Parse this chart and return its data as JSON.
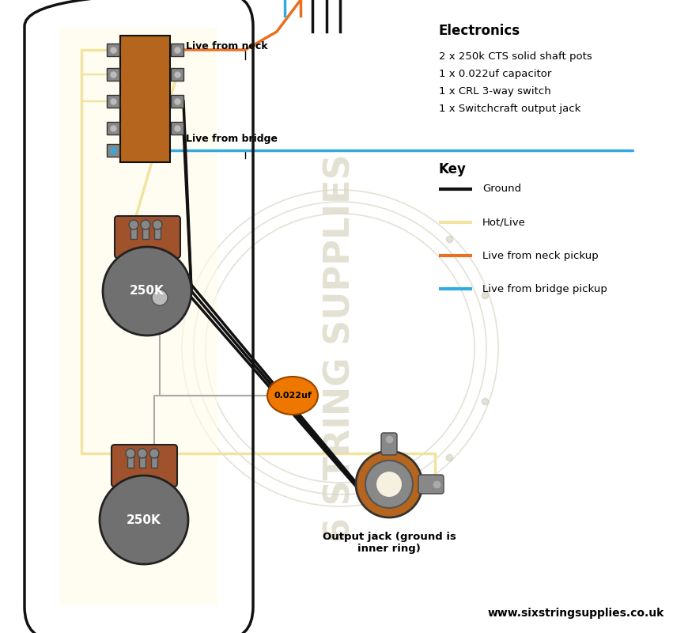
{
  "bg_color": "#ffffff",
  "pill_bg": "#ffffff",
  "yellow_bg": "#fffde8",
  "switch_color": "#b5651d",
  "terminal_face": "#888888",
  "terminal_edge": "#333333",
  "solder_color": "#bbbbbb",
  "pot_body_color": "#707070",
  "pot_base_color": "#a0522d",
  "pot_lug_face": "#888888",
  "shaft_color": "#999999",
  "cap_fill": "#ee7700",
  "cap_edge": "#994400",
  "jack_ring_color": "#b5651d",
  "jack_gray": "#888888",
  "ground_color": "#111111",
  "hot_color": "#f0e4a0",
  "neck_color": "#e87020",
  "bridge_color": "#33aadd",
  "watermark_color": "#d8d5c0",
  "wm_circle_color": "#c8c5b0",
  "electronics_title": "Electronics",
  "electronics_items": [
    "2 x 250k CTS solid shaft pots",
    "1 x 0.022uf capacitor",
    "1 x CRL 3-way switch",
    "1 x Switchcraft output jack"
  ],
  "key_title": "Key",
  "key_items": [
    {
      "label": "Ground",
      "color": "#111111"
    },
    {
      "label": "Hot/Live",
      "color": "#f0e4a0"
    },
    {
      "label": "Live from neck pickup",
      "color": "#e87020"
    },
    {
      "label": "Live from bridge pickup",
      "color": "#33aadd"
    }
  ],
  "footer": "www.sixstringsupplies.co.uk",
  "label_neck": "Live from neck",
  "label_bridge": "Live from bridge",
  "label_cap": "0.022uf",
  "label_pot": "250K",
  "label_jack": "Output jack (ground is\ninner ring)"
}
